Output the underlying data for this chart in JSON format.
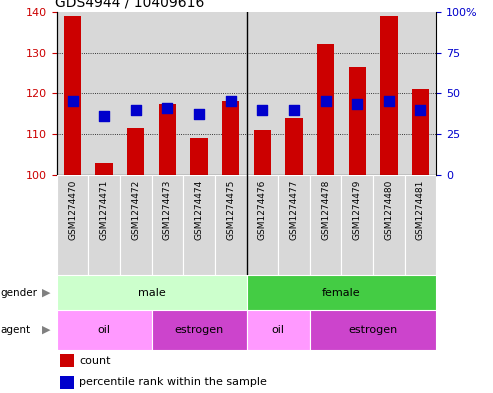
{
  "title": "GDS4944 / 10409616",
  "samples": [
    "GSM1274470",
    "GSM1274471",
    "GSM1274472",
    "GSM1274473",
    "GSM1274474",
    "GSM1274475",
    "GSM1274476",
    "GSM1274477",
    "GSM1274478",
    "GSM1274479",
    "GSM1274480",
    "GSM1274481"
  ],
  "counts": [
    139,
    103,
    111.5,
    117.5,
    109,
    118,
    111,
    114,
    132,
    126.5,
    139,
    121
  ],
  "percentile_ranks": [
    118,
    114.5,
    116,
    116.5,
    115,
    118,
    116,
    116,
    118,
    117.5,
    118,
    116
  ],
  "ylim_left": [
    100,
    140
  ],
  "ylim_right": [
    0,
    100
  ],
  "yticks_left": [
    100,
    110,
    120,
    130,
    140
  ],
  "yticks_right": [
    0,
    25,
    50,
    75,
    100
  ],
  "ytick_labels_right": [
    "0",
    "25",
    "50",
    "75",
    "100%"
  ],
  "bar_color": "#cc0000",
  "dot_color": "#0000cc",
  "gender_spans": [
    {
      "label": "male",
      "start": 0,
      "end": 5,
      "color": "#ccffcc",
      "text_color": "#000000"
    },
    {
      "label": "female",
      "start": 6,
      "end": 11,
      "color": "#44cc44",
      "text_color": "#000000"
    }
  ],
  "agent_spans": [
    {
      "label": "oil",
      "start": 0,
      "end": 2,
      "color": "#ff99ff",
      "text_color": "#000000"
    },
    {
      "label": "estrogen",
      "start": 3,
      "end": 5,
      "color": "#cc44cc",
      "text_color": "#000000"
    },
    {
      "label": "oil",
      "start": 6,
      "end": 7,
      "color": "#ff99ff",
      "text_color": "#000000"
    },
    {
      "label": "estrogen",
      "start": 8,
      "end": 11,
      "color": "#cc44cc",
      "text_color": "#000000"
    }
  ],
  "legend_count_label": "count",
  "legend_percentile_label": "percentile rank within the sample",
  "bar_width": 0.55,
  "dot_size": 45,
  "tick_label_color_left": "#cc0000",
  "tick_label_color_right": "#0000cc",
  "sample_label_fontsize": 6.5,
  "grid_ticks": [
    110,
    120,
    130
  ]
}
